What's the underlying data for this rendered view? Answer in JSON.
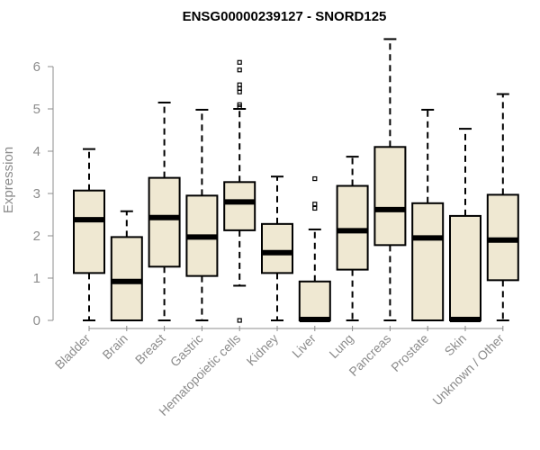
{
  "chart_data": {
    "type": "boxplot",
    "title": "ENSG00000239127 - SNORD125",
    "ylabel": "Expression",
    "xlabel": "",
    "ylim": [
      0,
      6.7
    ],
    "yticks": [
      0,
      1,
      2,
      3,
      4,
      5,
      6
    ],
    "grid": false,
    "box_fill": "#efe8d2",
    "categories": [
      "Bladder",
      "Brain",
      "Breast",
      "Gastric",
      "Hematopoietic cells",
      "Kidney",
      "Liver",
      "Lung",
      "Pancreas",
      "Prostate",
      "Skin",
      "Unknown / Other"
    ],
    "boxes": [
      {
        "min": 0,
        "q1": 1.12,
        "median": 2.38,
        "q3": 3.07,
        "max": 4.05,
        "outliers": []
      },
      {
        "min": 0,
        "q1": 0,
        "median": 0.92,
        "q3": 1.97,
        "max": 2.58,
        "outliers": []
      },
      {
        "min": 0,
        "q1": 1.27,
        "median": 2.43,
        "q3": 3.37,
        "max": 5.15,
        "outliers": []
      },
      {
        "min": 0,
        "q1": 1.05,
        "median": 1.97,
        "q3": 2.95,
        "max": 4.98,
        "outliers": []
      },
      {
        "min": 0.82,
        "q1": 2.13,
        "median": 2.8,
        "q3": 3.27,
        "max": 5.0,
        "outliers": [
          0,
          5.05,
          5.1,
          5.4,
          5.48,
          5.57,
          5.92,
          6.1
        ]
      },
      {
        "min": 0,
        "q1": 1.12,
        "median": 1.6,
        "q3": 2.28,
        "max": 3.4,
        "outliers": []
      },
      {
        "min": 0,
        "q1": 0,
        "median": 0.02,
        "q3": 0.92,
        "max": 2.15,
        "outliers": [
          2.65,
          2.75,
          3.35
        ]
      },
      {
        "min": 0,
        "q1": 1.2,
        "median": 2.12,
        "q3": 3.18,
        "max": 3.87,
        "outliers": []
      },
      {
        "min": 0,
        "q1": 1.78,
        "median": 2.62,
        "q3": 4.1,
        "max": 6.65,
        "outliers": []
      },
      {
        "min": 0,
        "q1": 0,
        "median": 1.95,
        "q3": 2.77,
        "max": 4.98,
        "outliers": []
      },
      {
        "min": 0,
        "q1": 0,
        "median": 0.02,
        "q3": 2.47,
        "max": 4.53,
        "outliers": []
      },
      {
        "min": 0,
        "q1": 0.95,
        "median": 1.9,
        "q3": 2.97,
        "max": 5.35,
        "outliers": []
      }
    ]
  }
}
